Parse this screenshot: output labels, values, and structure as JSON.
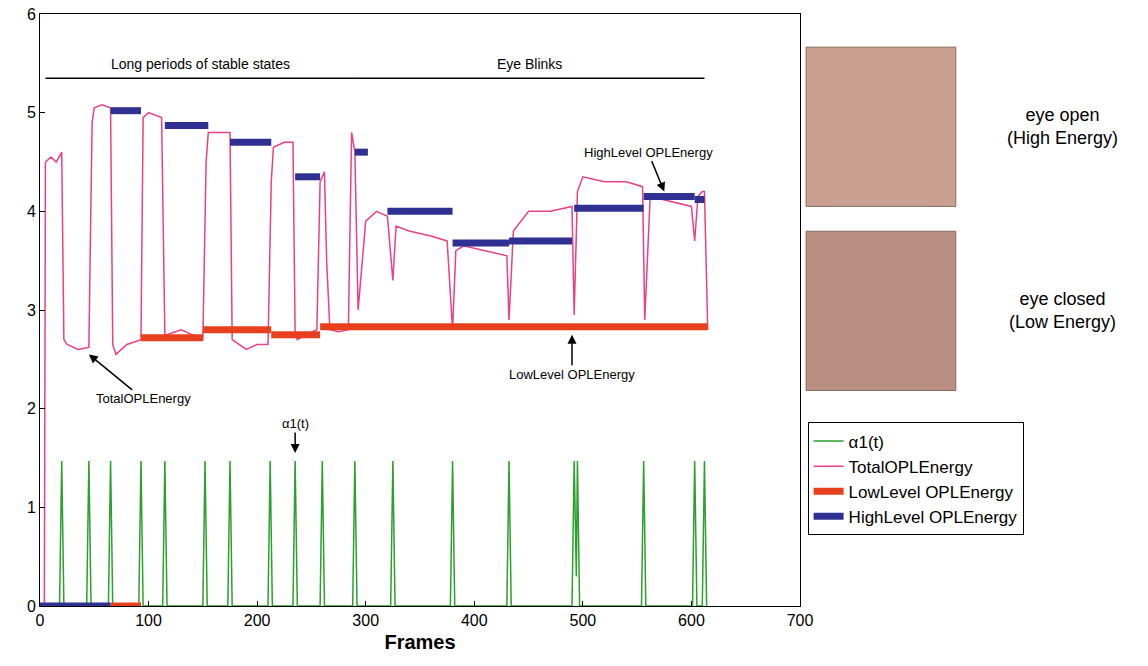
{
  "chart_data": {
    "type": "line",
    "x_label": "Frames",
    "xlim": [
      0,
      700
    ],
    "xticks": [
      0,
      100,
      200,
      300,
      400,
      500,
      600,
      700
    ],
    "ylim": [
      0,
      6
    ],
    "yticks": [
      0,
      1,
      2,
      3,
      4,
      5,
      6
    ],
    "legend": "right",
    "series": [
      {
        "name": "α1(t)",
        "color": "#2ca02c",
        "type": "line",
        "x": [
          0,
          18,
          20,
          22,
          43,
          45,
          47,
          63,
          65,
          67,
          91,
          93,
          95,
          113,
          115,
          117,
          150,
          152,
          154,
          173,
          175,
          177,
          210,
          212,
          214,
          233,
          235,
          237,
          258,
          260,
          262,
          288,
          290,
          292,
          323,
          325,
          327,
          378,
          380,
          382,
          430,
          432,
          434,
          490,
          492,
          494,
          495,
          497,
          554,
          556,
          558,
          601,
          603,
          605,
          610,
          612,
          614
        ],
        "values": [
          0,
          0,
          1.47,
          0,
          0,
          1.47,
          0,
          0,
          1.47,
          0,
          0,
          1.47,
          0,
          0,
          1.47,
          0,
          0,
          1.47,
          0,
          0,
          1.47,
          0,
          0,
          1.47,
          0,
          0,
          1.47,
          0,
          0,
          1.47,
          0,
          0,
          1.47,
          0,
          0,
          1.47,
          0,
          0,
          1.47,
          0,
          0,
          1.47,
          0,
          0,
          1.47,
          0.3,
          1.47,
          0,
          0,
          1.47,
          0,
          0,
          1.47,
          0,
          0,
          1.47,
          0
        ]
      },
      {
        "name": "TotalOPLEnergy",
        "color": "#e8408a",
        "type": "line",
        "x": [
          0,
          4,
          5,
          10,
          15,
          20,
          22,
          25,
          35,
          45,
          48,
          50,
          57,
          65,
          67,
          70,
          80,
          93,
          95,
          100,
          112,
          115,
          117,
          130,
          140,
          150,
          153,
          155,
          165,
          175,
          177,
          190,
          200,
          210,
          213,
          215,
          225,
          233,
          235,
          237,
          245,
          255,
          258,
          262,
          264,
          267,
          275,
          284,
          287,
          290,
          293,
          300,
          310,
          320,
          325,
          328,
          340,
          360,
          375,
          380,
          383,
          390,
          410,
          430,
          432,
          436,
          450,
          470,
          490,
          492,
          495,
          500,
          520,
          540,
          555,
          557,
          562,
          580,
          600,
          603,
          606,
          610,
          612,
          615
        ],
        "values": [
          0,
          0,
          4.5,
          4.55,
          4.5,
          4.6,
          2.7,
          2.65,
          2.6,
          2.62,
          4.9,
          5.05,
          5.08,
          5.05,
          2.65,
          2.55,
          2.65,
          2.7,
          4.95,
          5.0,
          4.95,
          2.75,
          2.75,
          2.8,
          2.75,
          2.7,
          4.5,
          4.8,
          4.8,
          4.8,
          2.7,
          2.6,
          2.65,
          2.65,
          4.3,
          4.65,
          4.7,
          4.7,
          2.75,
          2.7,
          2.75,
          2.8,
          4.3,
          4.4,
          3.5,
          2.8,
          2.78,
          2.8,
          4.8,
          4.6,
          3.0,
          3.9,
          4.0,
          3.95,
          3.3,
          3.85,
          3.8,
          3.75,
          3.7,
          2.8,
          3.6,
          3.65,
          3.6,
          3.55,
          2.9,
          3.8,
          4.0,
          4.0,
          4.05,
          2.95,
          4.2,
          4.35,
          4.3,
          4.3,
          4.25,
          2.9,
          4.15,
          4.1,
          4.05,
          3.7,
          4.15,
          4.2,
          4.2,
          2.8
        ]
      },
      {
        "name": "LowLevel OPLEnergy",
        "color": "#e8401c",
        "type": "line",
        "x": [
          65,
          93,
          93,
          93,
          150,
          150,
          150,
          213,
          213,
          213,
          258,
          258,
          258,
          615
        ],
        "values": [
          0,
          0,
          null,
          2.72,
          2.72,
          null,
          2.8,
          2.8,
          null,
          2.75,
          2.75,
          null,
          2.83,
          2.83
        ]
      },
      {
        "name": "HighLevel OPLEnergy",
        "color": "#2e3192",
        "type": "line",
        "x": [
          0,
          65,
          65,
          65,
          93,
          93,
          115,
          155,
          155,
          175,
          213,
          213,
          235,
          258,
          258,
          290,
          302,
          302,
          320,
          380,
          380,
          380,
          432,
          432,
          432,
          490,
          490,
          492,
          556,
          556,
          556,
          603,
          603,
          603,
          612
        ],
        "values": [
          0,
          0,
          null,
          5.02,
          5.02,
          null,
          4.87,
          4.87,
          null,
          4.7,
          4.7,
          null,
          4.35,
          4.35,
          null,
          4.6,
          4.6,
          null,
          4.0,
          4.0,
          null,
          3.68,
          3.68,
          null,
          3.7,
          3.7,
          null,
          4.03,
          4.03,
          null,
          4.15,
          4.15,
          null,
          4.12,
          4.12
        ]
      }
    ],
    "brackets": [
      {
        "text": "Long periods of stable states",
        "x0": 5,
        "x1": 290,
        "y": 5.35
      },
      {
        "text": "Eye Blinks",
        "x0": 290,
        "x1": 612,
        "y": 5.35
      }
    ],
    "annotations": [
      {
        "text": "TotalOPLEnergy",
        "x": 45,
        "y": 2.55,
        "text_x": 95,
        "text_y": 2.1
      },
      {
        "text": "α1(t)",
        "x": 235,
        "y": 1.55,
        "text_x": 235,
        "text_y": 1.85
      },
      {
        "text": "LowLevel OPLEnergy",
        "x": 490,
        "y": 2.75,
        "text_x": 490,
        "text_y": 2.35
      },
      {
        "text": "HighLevel OPLEnergy",
        "x": 575,
        "y": 4.2,
        "text_x": 560,
        "text_y": 4.6
      }
    ],
    "side_labels": [
      {
        "lines": [
          "eye open",
          "(High Energy)"
        ]
      },
      {
        "lines": [
          "eye closed",
          "(Low Energy)"
        ]
      }
    ]
  }
}
